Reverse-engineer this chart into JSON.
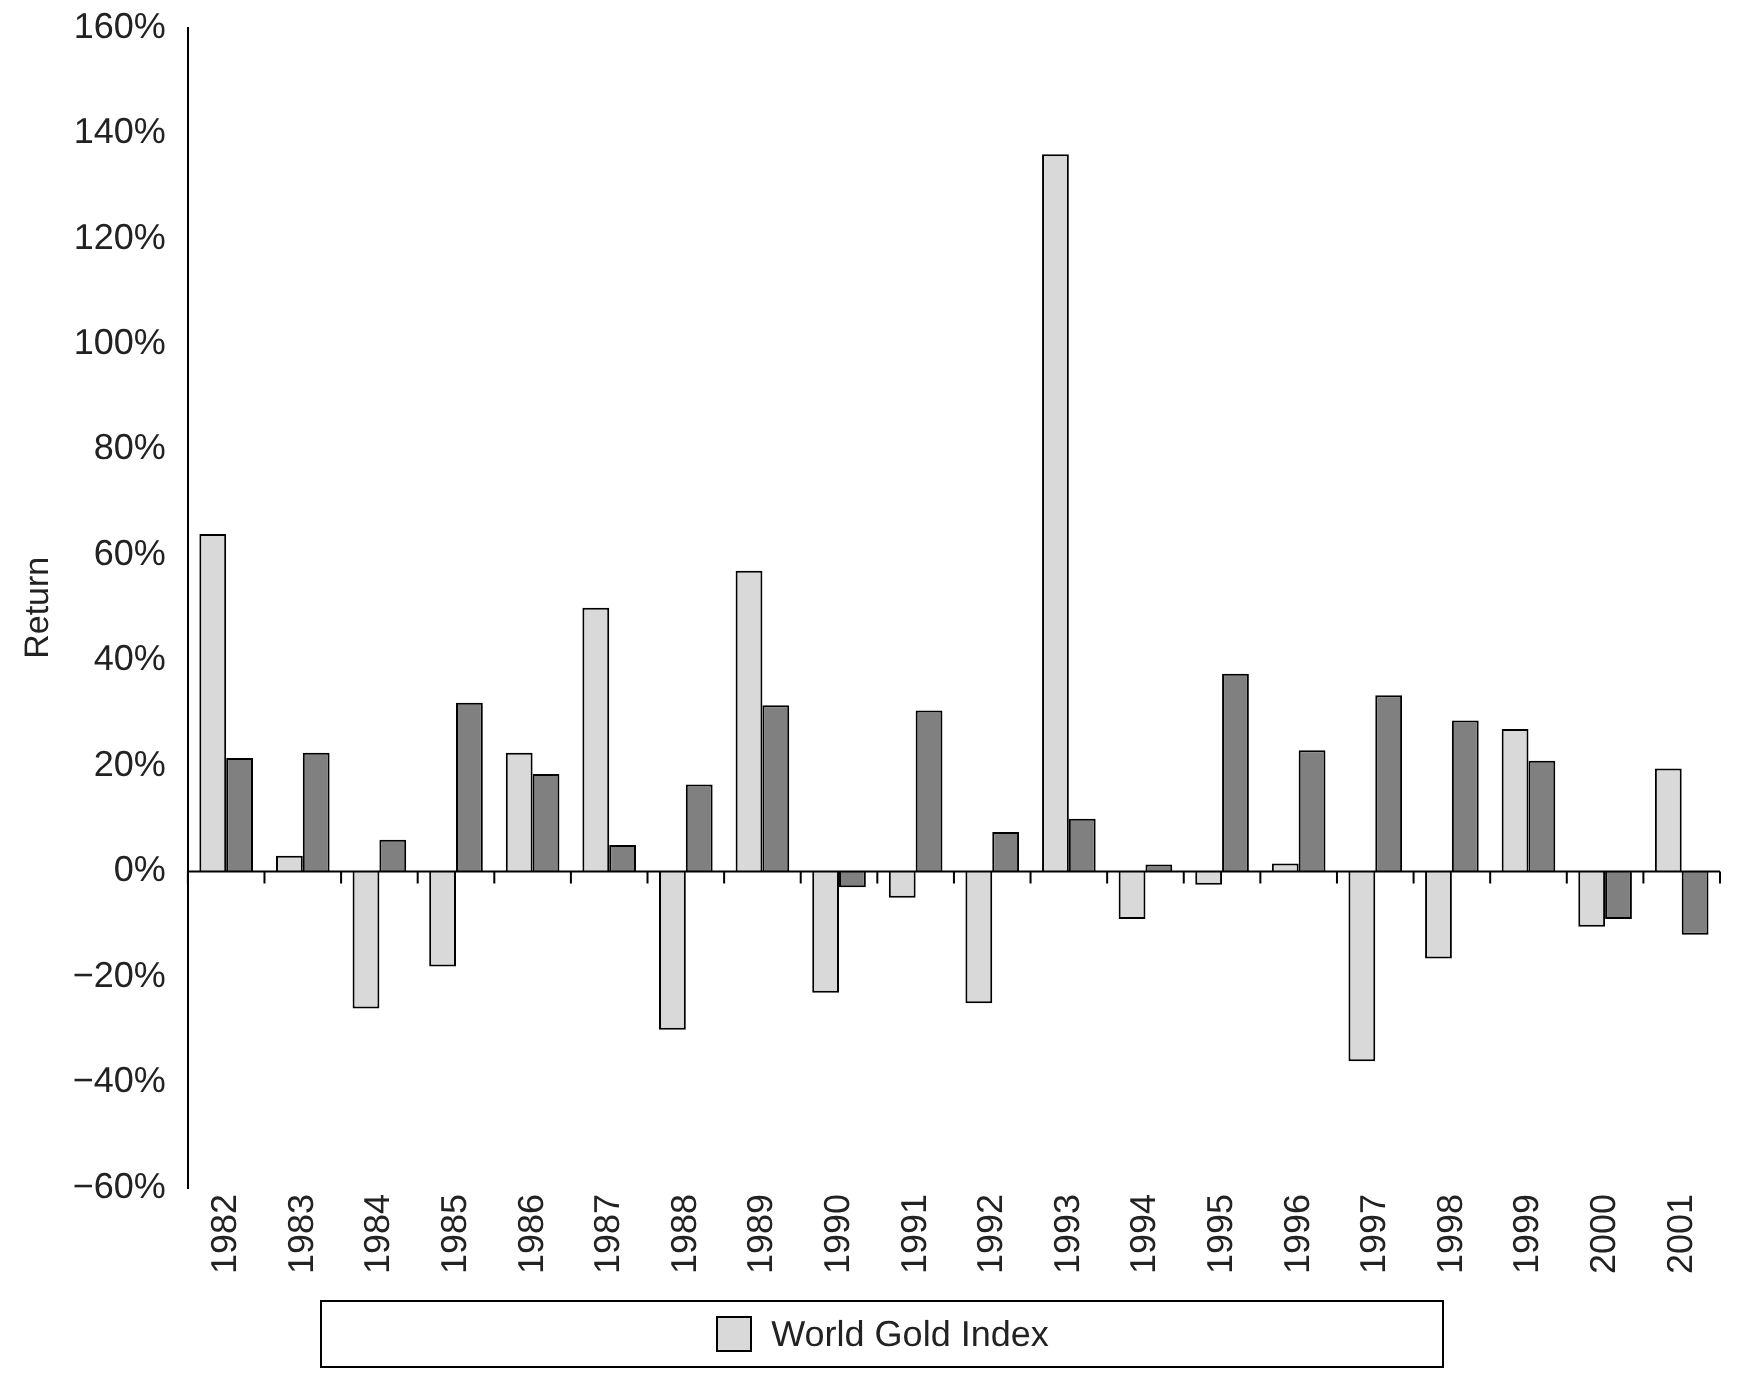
{
  "chart_data": {
    "type": "bar",
    "ylabel": "Return",
    "categories": [
      "1982",
      "1983",
      "1984",
      "1985",
      "1986",
      "1987",
      "1988",
      "1989",
      "1990",
      "1991",
      "1992",
      "1993",
      "1994",
      "1995",
      "1996",
      "1997",
      "1998",
      "1999",
      "2000",
      "2001"
    ],
    "series": [
      {
        "name": "World Gold Index",
        "color": "#d9d9d9",
        "values": [
          64,
          3,
          -26,
          -18,
          22.5,
          50,
          -30,
          57,
          -23,
          -5,
          -25,
          136,
          -9,
          -2.5,
          1.5,
          -36,
          -16.5,
          27,
          -10.5,
          19.5
        ]
      },
      {
        "color": "#808080",
        "values": [
          21.5,
          22.5,
          6,
          32,
          18.5,
          5,
          16.5,
          31.5,
          -3,
          30.5,
          7.5,
          10,
          1.3,
          37.5,
          23,
          33.4,
          28.6,
          21,
          -9,
          -12
        ]
      }
    ],
    "ylim": [
      -60,
      160
    ],
    "yticks": [
      {
        "value": -60,
        "label": "−60%"
      },
      {
        "value": -40,
        "label": "−40%"
      },
      {
        "value": -20,
        "label": "−20%"
      },
      {
        "value": 0,
        "label": "0%"
      },
      {
        "value": 20,
        "label": "20%"
      },
      {
        "value": 40,
        "label": "40%"
      },
      {
        "value": 60,
        "label": "60%"
      },
      {
        "value": 80,
        "label": "80%"
      },
      {
        "value": 100,
        "label": "100%"
      },
      {
        "value": 120,
        "label": "120%"
      },
      {
        "value": 140,
        "label": "140%"
      },
      {
        "value": 160,
        "label": "160%"
      }
    ],
    "legend": "bottom"
  }
}
